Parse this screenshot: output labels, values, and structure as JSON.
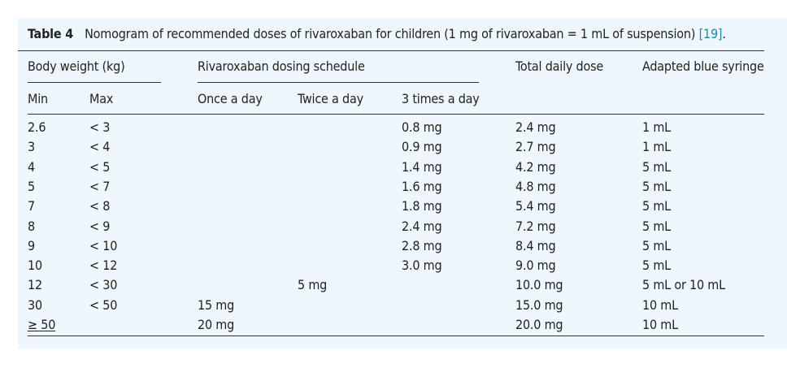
{
  "caption": {
    "label": "Table 4",
    "text": "Nomogram of recommended doses of rivaroxaban for children (1 mg of rivaroxaban = 1 mL of suspension)",
    "ref": "[19]",
    "end": "."
  },
  "headers": {
    "body_weight": "Body weight (kg)",
    "dosing_schedule": "Rivaroxaban dosing schedule",
    "total_daily": "Total daily dose",
    "syringe": "Adapted blue syringe",
    "min": "Min",
    "max": "Max",
    "once": "Once a day",
    "twice": "Twice a day",
    "three": "3 times a day"
  },
  "rows": [
    {
      "min": "2.6",
      "max": "< 3",
      "once": "",
      "twice": "",
      "three": "0.8 mg",
      "total": "2.4 mg",
      "syringe": "1 mL"
    },
    {
      "min": "3",
      "max": "< 4",
      "once": "",
      "twice": "",
      "three": "0.9 mg",
      "total": "2.7 mg",
      "syringe": "1 mL"
    },
    {
      "min": "4",
      "max": "< 5",
      "once": "",
      "twice": "",
      "three": "1.4 mg",
      "total": "4.2 mg",
      "syringe": "5 mL"
    },
    {
      "min": "5",
      "max": "< 7",
      "once": "",
      "twice": "",
      "three": "1.6 mg",
      "total": "4.8 mg",
      "syringe": "5 mL"
    },
    {
      "min": "7",
      "max": "< 8",
      "once": "",
      "twice": "",
      "three": "1.8 mg",
      "total": "5.4 mg",
      "syringe": "5 mL"
    },
    {
      "min": "8",
      "max": "< 9",
      "once": "",
      "twice": "",
      "three": "2.4 mg",
      "total": "7.2 mg",
      "syringe": "5 mL"
    },
    {
      "min": "9",
      "max": "< 10",
      "once": "",
      "twice": "",
      "three": "2.8 mg",
      "total": "8.4 mg",
      "syringe": "5 mL"
    },
    {
      "min": "10",
      "max": "< 12",
      "once": "",
      "twice": "",
      "three": "3.0 mg",
      "total": "9.0 mg",
      "syringe": "5 mL"
    },
    {
      "min": "12",
      "max": "< 30",
      "once": "",
      "twice": "5 mg",
      "three": "",
      "total": "10.0 mg",
      "syringe": "5 mL or 10 mL"
    },
    {
      "min": "30",
      "max": "< 50",
      "once": "15 mg",
      "twice": "",
      "three": "",
      "total": "15.0 mg",
      "syringe": "10 mL"
    },
    {
      "min": "≥ 50",
      "max": "",
      "once": "20 mg",
      "twice": "",
      "three": "",
      "total": "20.0 mg",
      "syringe": "10 mL"
    }
  ]
}
